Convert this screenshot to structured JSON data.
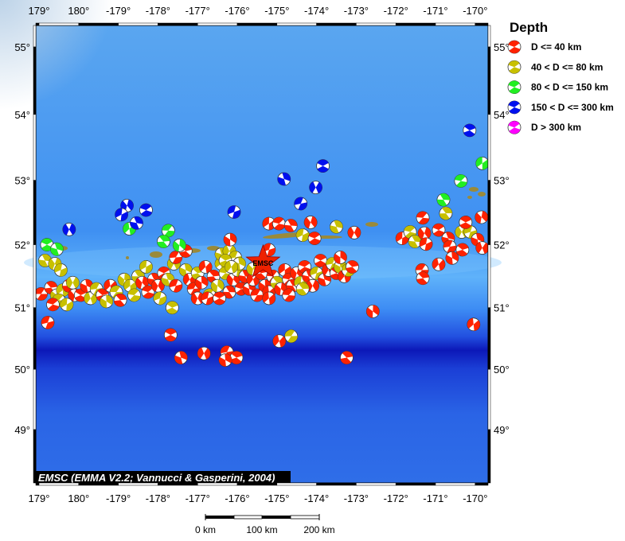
{
  "legend": {
    "title": "Depth",
    "items": [
      {
        "label": "D <= 40 km",
        "color": "#ff2200"
      },
      {
        "label": "40 < D <= 80 km",
        "color": "#c8c000"
      },
      {
        "label": "80 < D <= 150 km",
        "color": "#22ee22"
      },
      {
        "label": "150 < D <= 300 km",
        "color": "#0010ee"
      },
      {
        "label": "D > 300 km",
        "color": "#ff00ff"
      }
    ]
  },
  "map": {
    "lon_ticks": [
      {
        "lon": 179,
        "label": "179°"
      },
      {
        "lon": 180,
        "label": "180°"
      },
      {
        "lon": -179,
        "label": "-179°"
      },
      {
        "lon": -178,
        "label": "-178°"
      },
      {
        "lon": -177,
        "label": "-177°"
      },
      {
        "lon": -176,
        "label": "-176°"
      },
      {
        "lon": -175,
        "label": "-175°"
      },
      {
        "lon": -174,
        "label": "-174°"
      },
      {
        "lon": -173,
        "label": "-173°"
      },
      {
        "lon": -172,
        "label": "-172°"
      },
      {
        "lon": -171,
        "label": "-171°"
      },
      {
        "lon": -170,
        "label": "-170°"
      }
    ],
    "lat_ticks": [
      {
        "lat": 55,
        "label": "55°"
      },
      {
        "lat": 54,
        "label": "54°"
      },
      {
        "lat": 53,
        "label": "53°"
      },
      {
        "lat": 52,
        "label": "52°"
      },
      {
        "lat": 51,
        "label": "51°"
      },
      {
        "lat": 50,
        "label": "50°"
      },
      {
        "lat": 49,
        "label": "49°"
      }
    ],
    "epicenter": {
      "lon": -175.35,
      "lat": 51.72,
      "label": "EMSC",
      "color": "#ee2200"
    },
    "attribution": "EMSC (EMMA V2.2; Vannucci & Gasperini, 2004)",
    "scale_bar": {
      "labels": [
        "0 km",
        "100 km",
        "200 km"
      ]
    },
    "events": [
      [
        179.05,
        51.22,
        0
      ],
      [
        179.3,
        51.32,
        0
      ],
      [
        179.45,
        51.2,
        1
      ],
      [
        179.6,
        51.28,
        1
      ],
      [
        179.5,
        51.12,
        1
      ],
      [
        179.75,
        51.35,
        0
      ],
      [
        179.9,
        51.2,
        0
      ],
      [
        179.7,
        51.05,
        1
      ],
      [
        179.35,
        51.05,
        0
      ],
      [
        179.15,
        51.75,
        1
      ],
      [
        179.4,
        51.7,
        1
      ],
      [
        179.55,
        51.6,
        1
      ],
      [
        179.2,
        52.0,
        2
      ],
      [
        179.45,
        51.93,
        2
      ],
      [
        179.85,
        51.4,
        1
      ],
      [
        179.22,
        50.76,
        0
      ],
      [
        -179.95,
        51.2,
        0
      ],
      [
        -179.8,
        51.35,
        0
      ],
      [
        -179.7,
        51.15,
        1
      ],
      [
        -179.55,
        51.3,
        1
      ],
      [
        -179.4,
        51.2,
        0
      ],
      [
        -179.3,
        51.1,
        1
      ],
      [
        -179.2,
        51.35,
        0
      ],
      [
        -179.05,
        51.25,
        1
      ],
      [
        -178.95,
        51.12,
        0
      ],
      [
        -178.85,
        51.45,
        1
      ],
      [
        -178.7,
        51.35,
        1
      ],
      [
        -178.6,
        51.2,
        1
      ],
      [
        -178.5,
        51.5,
        1
      ],
      [
        -178.4,
        51.4,
        0
      ],
      [
        -178.3,
        51.65,
        1
      ],
      [
        -178.25,
        51.25,
        0
      ],
      [
        -178.1,
        51.45,
        0
      ],
      [
        -178.0,
        51.35,
        0
      ],
      [
        -177.95,
        51.15,
        1
      ],
      [
        -177.85,
        51.55,
        0
      ],
      [
        -177.75,
        51.45,
        1
      ],
      [
        -177.6,
        51.7,
        1
      ],
      [
        -177.55,
        51.35,
        0
      ],
      [
        -177.64,
        51.0,
        1
      ],
      [
        -177.3,
        51.6,
        1
      ],
      [
        -177.2,
        51.45,
        0
      ],
      [
        -177.1,
        51.3,
        0
      ],
      [
        -177.0,
        51.55,
        1
      ],
      [
        -176.9,
        51.4,
        0
      ],
      [
        -176.8,
        51.65,
        0
      ],
      [
        -176.7,
        51.2,
        1
      ],
      [
        -176.6,
        51.5,
        0
      ],
      [
        -176.5,
        51.35,
        1
      ],
      [
        -176.4,
        51.7,
        1
      ],
      [
        -176.3,
        51.55,
        1
      ],
      [
        -176.2,
        51.25,
        0
      ],
      [
        -176.1,
        51.45,
        0
      ],
      [
        -176.0,
        51.6,
        1
      ],
      [
        -175.9,
        51.3,
        0
      ],
      [
        -175.8,
        51.5,
        0
      ],
      [
        -177.0,
        51.15,
        0
      ],
      [
        -176.75,
        51.15,
        0
      ],
      [
        -176.45,
        51.15,
        0
      ],
      [
        -176.4,
        51.85,
        1
      ],
      [
        -176.2,
        51.9,
        1
      ],
      [
        -176.05,
        51.8,
        1
      ],
      [
        -176.3,
        51.75,
        1
      ],
      [
        -175.95,
        51.7,
        1
      ],
      [
        -176.15,
        51.65,
        1
      ],
      [
        -177.55,
        51.8,
        0
      ],
      [
        -177.3,
        51.9,
        0
      ],
      [
        -176.18,
        52.08,
        0
      ],
      [
        -178.72,
        52.25,
        2
      ],
      [
        -177.74,
        52.22,
        2
      ],
      [
        -177.86,
        52.05,
        2
      ],
      [
        -177.46,
        51.99,
        2
      ],
      [
        -169.82,
        53.26,
        2
      ],
      [
        -170.36,
        52.99,
        2
      ],
      [
        -170.8,
        52.7,
        2
      ],
      [
        -178.78,
        52.61,
        3
      ],
      [
        -178.92,
        52.47,
        3
      ],
      [
        -178.3,
        52.54,
        3
      ],
      [
        -178.54,
        52.34,
        3
      ],
      [
        179.76,
        52.24,
        3
      ],
      [
        -176.08,
        52.51,
        3
      ],
      [
        -173.84,
        53.22,
        3
      ],
      [
        -174.82,
        53.02,
        3
      ],
      [
        -174.02,
        52.89,
        3
      ],
      [
        -174.4,
        52.64,
        3
      ],
      [
        -170.14,
        53.76,
        3
      ],
      [
        -175.7,
        51.3,
        0
      ],
      [
        -175.6,
        51.45,
        0
      ],
      [
        -175.5,
        51.2,
        0
      ],
      [
        -175.4,
        51.55,
        0
      ],
      [
        -175.3,
        51.35,
        0
      ],
      [
        -175.2,
        51.25,
        0
      ],
      [
        -175.1,
        51.5,
        0
      ],
      [
        -175.0,
        51.4,
        1
      ],
      [
        -174.9,
        51.3,
        0
      ],
      [
        -174.8,
        51.6,
        0
      ],
      [
        -174.7,
        51.45,
        0
      ],
      [
        -174.6,
        51.35,
        0
      ],
      [
        -174.5,
        51.55,
        0
      ],
      [
        -174.4,
        51.4,
        1
      ],
      [
        -174.3,
        51.65,
        0
      ],
      [
        -174.2,
        51.5,
        0
      ],
      [
        -174.1,
        51.35,
        0
      ],
      [
        -174.0,
        51.55,
        1
      ],
      [
        -173.9,
        51.75,
        0
      ],
      [
        -173.8,
        51.45,
        0
      ],
      [
        -173.7,
        51.6,
        0
      ],
      [
        -173.6,
        51.7,
        1
      ],
      [
        -173.5,
        51.55,
        0
      ],
      [
        -173.4,
        51.65,
        1
      ],
      [
        -173.3,
        51.5,
        0
      ],
      [
        -173.2,
        51.6,
        1
      ],
      [
        -173.1,
        51.65,
        0
      ],
      [
        -173.4,
        51.8,
        0
      ],
      [
        -175.2,
        51.15,
        0
      ],
      [
        -174.7,
        51.2,
        0
      ],
      [
        -174.35,
        51.3,
        1
      ],
      [
        -175.6,
        51.62,
        1
      ],
      [
        -175.2,
        52.33,
        0
      ],
      [
        -174.95,
        52.33,
        0
      ],
      [
        -174.65,
        52.3,
        0
      ],
      [
        -174.15,
        52.35,
        0
      ],
      [
        -174.35,
        52.15,
        1
      ],
      [
        -174.05,
        52.1,
        0
      ],
      [
        -173.5,
        52.28,
        1
      ],
      [
        -173.05,
        52.19,
        0
      ],
      [
        -175.2,
        51.92,
        0
      ],
      [
        -177.68,
        50.56,
        0
      ],
      [
        -177.42,
        50.19,
        0
      ],
      [
        -176.84,
        50.26,
        0
      ],
      [
        -176.26,
        50.28,
        0
      ],
      [
        -176.02,
        50.19,
        0
      ],
      [
        -176.3,
        50.15,
        0
      ],
      [
        -174.94,
        50.46,
        0
      ],
      [
        -174.64,
        50.54,
        1
      ],
      [
        -173.24,
        50.19,
        0
      ],
      [
        -172.58,
        50.94,
        0
      ],
      [
        -170.04,
        50.73,
        0
      ],
      [
        -171.32,
        52.42,
        0
      ],
      [
        -170.74,
        52.49,
        1
      ],
      [
        -169.84,
        52.43,
        0
      ],
      [
        -171.84,
        52.1,
        0
      ],
      [
        -171.64,
        52.2,
        1
      ],
      [
        -171.52,
        52.05,
        1
      ],
      [
        -171.28,
        52.18,
        0
      ],
      [
        -171.24,
        52.01,
        0
      ],
      [
        -170.92,
        52.23,
        0
      ],
      [
        -170.68,
        52.1,
        0
      ],
      [
        -170.34,
        52.2,
        1
      ],
      [
        -170.12,
        52.2,
        1
      ],
      [
        -170.24,
        52.35,
        0
      ],
      [
        -169.94,
        52.08,
        0
      ],
      [
        -169.82,
        51.95,
        0
      ],
      [
        -170.64,
        51.97,
        0
      ],
      [
        -170.32,
        51.92,
        0
      ],
      [
        -170.58,
        51.79,
        0
      ],
      [
        -170.92,
        51.69,
        0
      ],
      [
        -171.34,
        51.6,
        0
      ],
      [
        -171.32,
        51.47,
        0
      ]
    ]
  }
}
